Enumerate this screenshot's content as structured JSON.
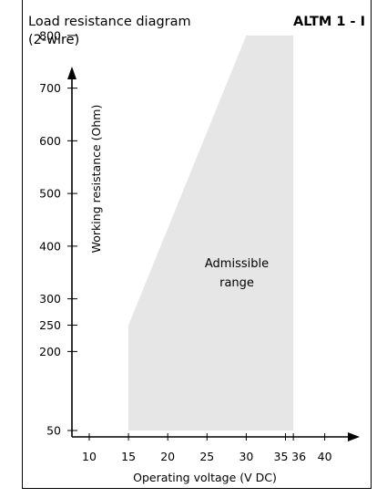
{
  "chart_data": {
    "type": "area",
    "title_line1": "Load resistance diagram",
    "title_line2": "(2-wire)",
    "model": "ALTM 1 - I",
    "xlabel": "Operating voltage  (V DC)",
    "ylabel": "Working resistance  (Ohm)",
    "x_ticks": [
      {
        "value": 10,
        "label": "10"
      },
      {
        "value": 15,
        "label": "15"
      },
      {
        "value": 20,
        "label": "20"
      },
      {
        "value": 25,
        "label": "25"
      },
      {
        "value": 30,
        "label": "30"
      },
      {
        "value": 35,
        "label": "35"
      },
      {
        "value": 36,
        "label": "36"
      },
      {
        "value": 40,
        "label": "40"
      }
    ],
    "y_ticks": [
      {
        "value": 50,
        "label": "50"
      },
      {
        "value": 200,
        "label": "200"
      },
      {
        "value": 250,
        "label": "250"
      },
      {
        "value": 300,
        "label": "300"
      },
      {
        "value": 400,
        "label": "400"
      },
      {
        "value": 500,
        "label": "500"
      },
      {
        "value": 600,
        "label": "600"
      },
      {
        "value": 700,
        "label": "700"
      },
      {
        "value": 800,
        "label": "800"
      }
    ],
    "xlim": [
      7,
      44
    ],
    "ylim": [
      40,
      840
    ],
    "region": {
      "label_line1": "Admissible",
      "label_line2": "range",
      "color": "#e6e6e6",
      "polygon": [
        {
          "x": 15,
          "y": 50
        },
        {
          "x": 15,
          "y": 250
        },
        {
          "x": 30,
          "y": 800
        },
        {
          "x": 36,
          "y": 800
        },
        {
          "x": 36,
          "y": 50
        }
      ]
    },
    "grid": false
  }
}
